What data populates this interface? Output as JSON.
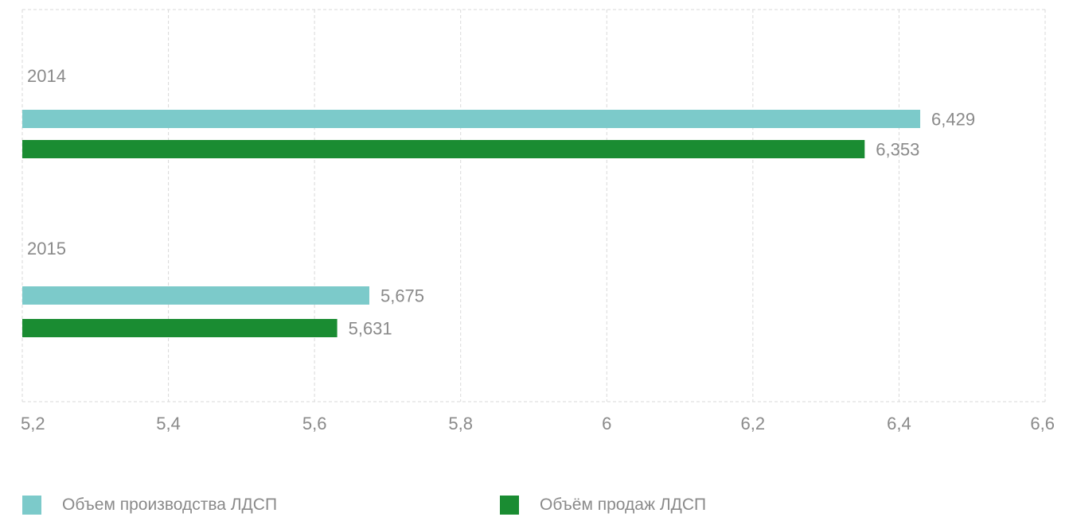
{
  "chart_data": {
    "type": "bar",
    "orientation": "horizontal",
    "categories": [
      "2014",
      "2015"
    ],
    "series": [
      {
        "name": "Объем производства ЛДСП",
        "color": "#7ccaca",
        "values": [
          6.429,
          5.675
        ],
        "labels": [
          "6,429",
          "5,675"
        ]
      },
      {
        "name": "Объём продаж ЛДСП",
        "color": "#1a8c32",
        "values": [
          6.353,
          5.631
        ],
        "labels": [
          "6,353",
          "5,631"
        ]
      }
    ],
    "xlim": [
      5.2,
      6.6
    ],
    "xticks": [
      5.2,
      5.4,
      5.6,
      5.8,
      6,
      6.2,
      6.4,
      6.6
    ],
    "xtick_labels": [
      "5,2",
      "5,4",
      "5,6",
      "5,8",
      "6",
      "6,2",
      "6,4",
      "6,6"
    ],
    "grid": true,
    "legend_position": "bottom"
  }
}
